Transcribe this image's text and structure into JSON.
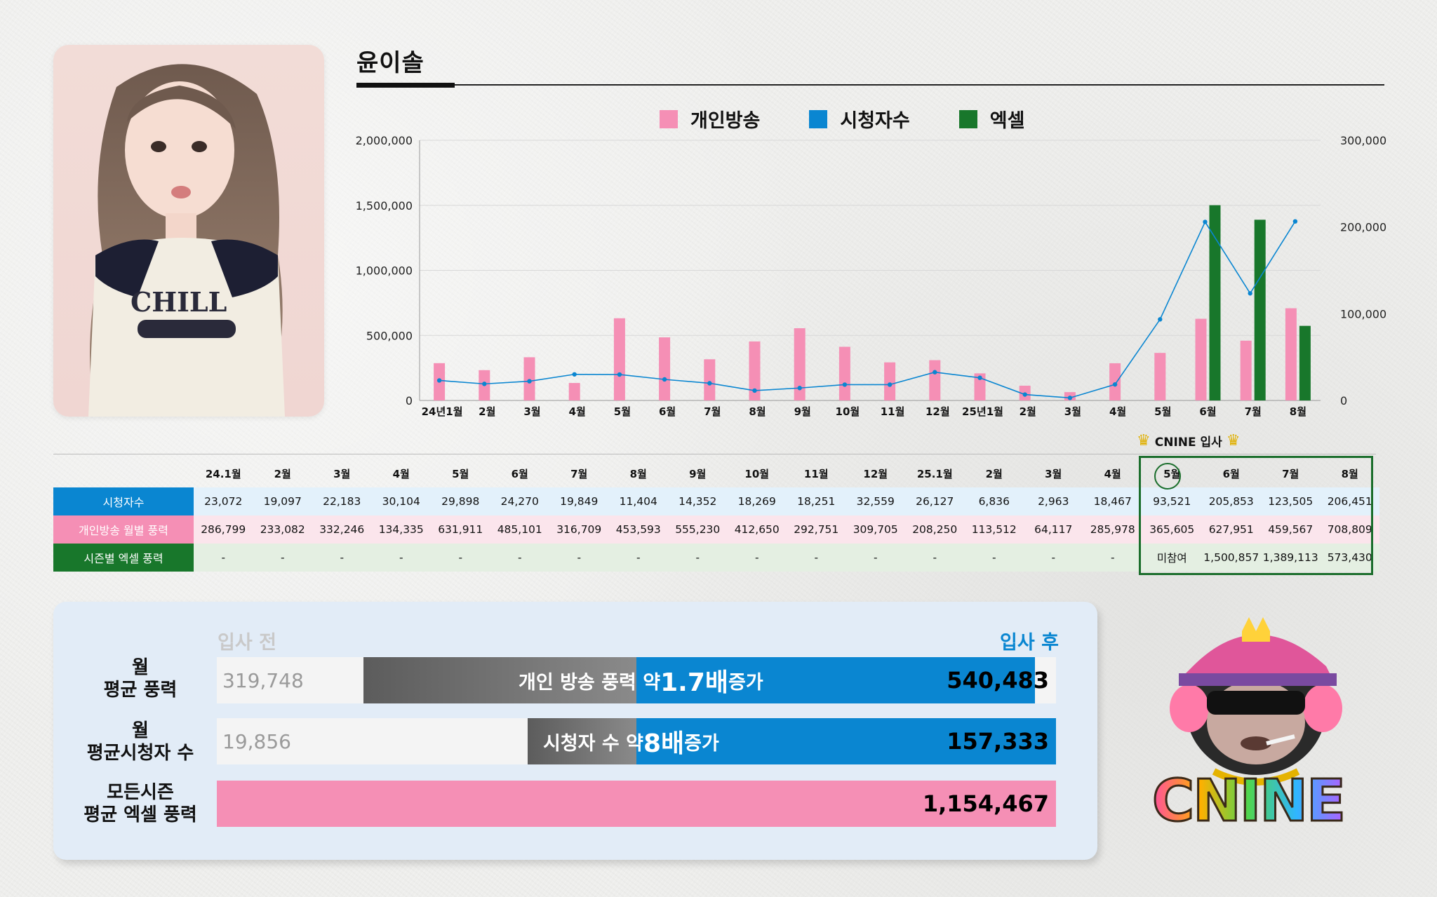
{
  "profile": {
    "name": "윤이솔"
  },
  "legend": {
    "personal": "개인방송",
    "viewers": "시청자수",
    "excel": "엑셀"
  },
  "colors": {
    "personal": "#f58fb5",
    "viewers": "#0a86d1",
    "excel": "#18772b"
  },
  "chart_data": {
    "type": "bar",
    "categories": [
      "24년1월",
      "2월",
      "3월",
      "4월",
      "5월",
      "6월",
      "7월",
      "8월",
      "9월",
      "10월",
      "11월",
      "12월",
      "25년1월",
      "2월",
      "3월",
      "4월",
      "5월",
      "6월",
      "7월",
      "8월"
    ],
    "series": [
      {
        "name": "개인방송",
        "type": "bar",
        "axis": "left",
        "values": [
          286799,
          233082,
          332246,
          134335,
          631911,
          485101,
          316709,
          453593,
          555230,
          412650,
          292751,
          309705,
          208250,
          113512,
          64117,
          285978,
          365605,
          627951,
          459567,
          708809
        ]
      },
      {
        "name": "엑셀",
        "type": "bar",
        "axis": "left",
        "values": [
          null,
          null,
          null,
          null,
          null,
          null,
          null,
          null,
          null,
          null,
          null,
          null,
          null,
          null,
          null,
          null,
          null,
          1500857,
          1389113,
          573430
        ]
      },
      {
        "name": "시청자수",
        "type": "line",
        "axis": "right",
        "values": [
          23072,
          19097,
          22183,
          30104,
          29898,
          24270,
          19849,
          11404,
          14352,
          18269,
          18251,
          32559,
          26127,
          6836,
          2963,
          18467,
          93521,
          205853,
          123505,
          206451
        ]
      }
    ],
    "y_left": {
      "min": 0,
      "max": 2000000,
      "ticks": [
        "0",
        "500,000",
        "1,000,000",
        "1,500,000",
        "2,000,000"
      ]
    },
    "y_right": {
      "min": 0,
      "max": 300000,
      "ticks": [
        "0",
        "100,000",
        "200,000",
        "300,000"
      ]
    },
    "legend_position": "top"
  },
  "table": {
    "cnine_label": "CNINE 입사",
    "months": [
      "24.1월",
      "2월",
      "3월",
      "4월",
      "5월",
      "6월",
      "7월",
      "8월",
      "9월",
      "10월",
      "11월",
      "12월",
      "25.1월",
      "2월",
      "3월",
      "4월",
      "5월",
      "6월",
      "7월",
      "8월"
    ],
    "rows": [
      {
        "label": "시청자수",
        "values": [
          "23,072",
          "19,097",
          "22,183",
          "30,104",
          "29,898",
          "24,270",
          "19,849",
          "11,404",
          "14,352",
          "18,269",
          "18,251",
          "32,559",
          "26,127",
          "6,836",
          "2,963",
          "18,467",
          "93,521",
          "205,853",
          "123,505",
          "206,451"
        ]
      },
      {
        "label": "개인방송 월별 풍력",
        "values": [
          "286,799",
          "233,082",
          "332,246",
          "134,335",
          "631,911",
          "485,101",
          "316,709",
          "453,593",
          "555,230",
          "412,650",
          "292,751",
          "309,705",
          "208,250",
          "113,512",
          "64,117",
          "285,978",
          "365,605",
          "627,951",
          "459,567",
          "708,809"
        ]
      },
      {
        "label": "시즌별 엑셀 풍력",
        "values": [
          "-",
          "-",
          "-",
          "-",
          "-",
          "-",
          "-",
          "-",
          "-",
          "-",
          "-",
          "-",
          "-",
          "-",
          "-",
          "-",
          "미참여",
          "1,500,857",
          "1,389,113",
          "573,430"
        ]
      }
    ]
  },
  "summary": {
    "before_label": "입사 전",
    "after_label": "입사 후",
    "rows": [
      {
        "label_line1": "월",
        "label_line2": "평균 풍력",
        "before": "319,748",
        "mid_prefix": "개인 방송 풍력 약 ",
        "mid_big": "1.7배",
        "mid_suffix": " 증가",
        "after": "540,483",
        "before_fraction": 0.175,
        "gray_end": 0.5,
        "after_fraction": 0.975
      },
      {
        "label_line1": "월",
        "label_line2": "평균시청자 수",
        "before": "19,856",
        "mid_prefix": "시청자 수 약 ",
        "mid_big": "8배",
        "mid_suffix": " 증가",
        "after": "157,333",
        "before_fraction": 0.37,
        "gray_end": 0.5,
        "after_fraction": 1.0
      },
      {
        "label_line1": "모든시즌",
        "label_line2": "평균 엑셀 풍력",
        "after": "1,154,467"
      }
    ]
  },
  "logo": {
    "text": "CNINE",
    "icon": "monkey-mascot-icon"
  }
}
